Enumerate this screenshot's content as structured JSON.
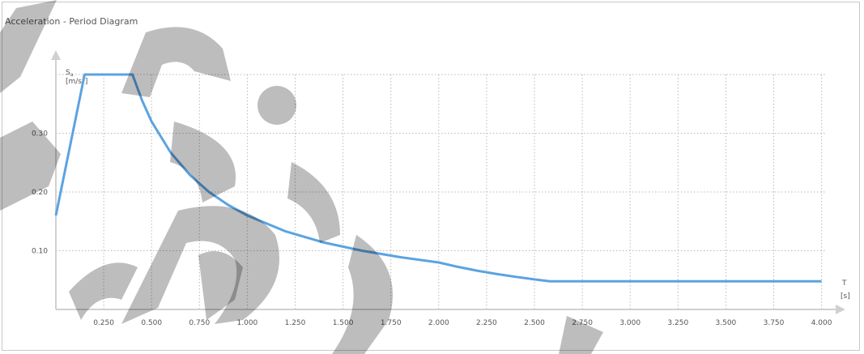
{
  "window": {
    "title": "Acceleration - Period Diagram"
  },
  "chart_data": {
    "type": "line",
    "title": "Acceleration - Period Diagram",
    "xlabel": "T",
    "xunit": "[s]",
    "ylabel": "Sa",
    "ylabel_main": "S",
    "ylabel_sub": "a",
    "yunit_prefix": "[m/s",
    "yunit_sup": "2",
    "yunit_suffix": "]",
    "xlim": [
      0,
      4.2
    ],
    "ylim": [
      0,
      0.4
    ],
    "grid": true,
    "x_ticks": [
      0.25,
      0.5,
      0.75,
      1.0,
      1.25,
      1.5,
      1.75,
      2.0,
      2.25,
      2.5,
      2.75,
      3.0,
      3.25,
      3.5,
      3.75,
      4.0
    ],
    "x_tick_labels": [
      "0.250",
      "0.500",
      "0.750",
      "1.000",
      "1.250",
      "1.500",
      "1.750",
      "2.000",
      "2.250",
      "2.500",
      "2.750",
      "3.000",
      "3.250",
      "3.500",
      "3.750",
      "4.000"
    ],
    "y_ticks": [
      0.1,
      0.2,
      0.3
    ],
    "y_tick_labels": [
      "0.10",
      "0.20",
      "0.30"
    ],
    "series": [
      {
        "color": "#5ba3e0",
        "points": [
          [
            0.0,
            0.16
          ],
          [
            0.15,
            0.4
          ],
          [
            0.4,
            0.4
          ],
          [
            0.45,
            0.356
          ],
          [
            0.5,
            0.32
          ],
          [
            0.6,
            0.267
          ],
          [
            0.7,
            0.229
          ],
          [
            0.8,
            0.2
          ],
          [
            0.9,
            0.178
          ],
          [
            1.0,
            0.16
          ],
          [
            1.2,
            0.133
          ],
          [
            1.4,
            0.114
          ],
          [
            1.6,
            0.1
          ],
          [
            1.8,
            0.089
          ],
          [
            2.0,
            0.08
          ],
          [
            2.1,
            0.0726
          ],
          [
            2.2,
            0.0661
          ],
          [
            2.3,
            0.0605
          ],
          [
            2.4,
            0.0556
          ],
          [
            2.5,
            0.0512
          ],
          [
            2.58,
            0.048
          ],
          [
            4.0,
            0.048
          ]
        ]
      }
    ]
  }
}
